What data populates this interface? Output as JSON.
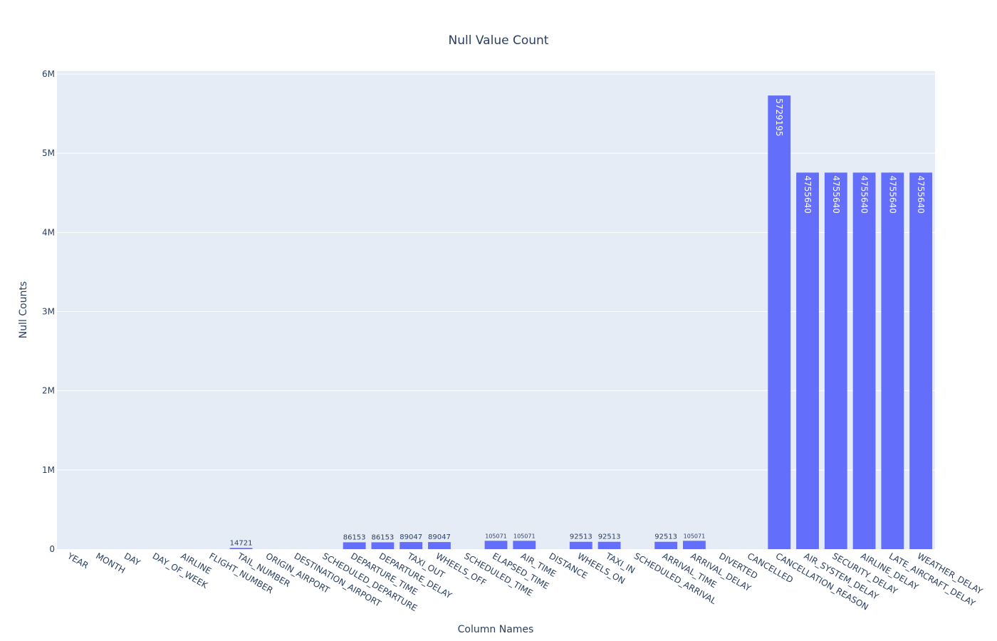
{
  "colors": {
    "bar": "#636efa",
    "plot_bg": "#e5ecf6",
    "grid": "#ffffff",
    "text": "#2a3f5f"
  },
  "chart_data": {
    "type": "bar",
    "title": "Null Value Count",
    "xlabel": "Column Names",
    "ylabel": "Null Counts",
    "ylim": [
      0,
      6000000
    ],
    "yticks": [
      {
        "value": 0,
        "label": "0"
      },
      {
        "value": 1000000,
        "label": "1M"
      },
      {
        "value": 2000000,
        "label": "2M"
      },
      {
        "value": 3000000,
        "label": "3M"
      },
      {
        "value": 4000000,
        "label": "4M"
      },
      {
        "value": 5000000,
        "label": "5M"
      },
      {
        "value": 6000000,
        "label": "6M"
      }
    ],
    "grid": true,
    "legend": "none",
    "categories": [
      "YEAR",
      "MONTH",
      "DAY",
      "DAY_OF_WEEK",
      "AIRLINE",
      "FLIGHT_NUMBER",
      "TAIL_NUMBER",
      "ORIGIN_AIRPORT",
      "DESTINATION_AIRPORT",
      "SCHEDULED_DEPARTURE",
      "DEPARTURE_TIME",
      "DEPARTURE_DELAY",
      "TAXI_OUT",
      "WHEELS_OFF",
      "SCHEDULED_TIME",
      "ELAPSED_TIME",
      "AIR_TIME",
      "DISTANCE",
      "WHEELS_ON",
      "TAXI_IN",
      "SCHEDULED_ARRIVAL",
      "ARRIVAL_TIME",
      "ARRIVAL_DELAY",
      "DIVERTED",
      "CANCELLED",
      "CANCELLATION_REASON",
      "AIR_SYSTEM_DELAY",
      "SECURITY_DELAY",
      "AIRLINE_DELAY",
      "LATE_AIRCRAFT_DELAY",
      "WEATHER_DELAY"
    ],
    "values": [
      0,
      0,
      0,
      0,
      0,
      0,
      14721,
      0,
      0,
      0,
      86153,
      86153,
      89047,
      89047,
      0,
      105071,
      105071,
      0,
      92513,
      92513,
      0,
      92513,
      105071,
      0,
      0,
      5729195,
      4755640,
      4755640,
      4755640,
      4755640,
      4755640
    ],
    "data_labels": [
      "",
      "",
      "",
      "",
      "",
      "",
      "14721",
      "",
      "",
      "",
      "86153",
      "86153",
      "89047",
      "89047",
      "",
      "105071",
      "105071",
      "",
      "92513",
      "92513",
      "",
      "92513",
      "105071",
      "",
      "",
      "5729195",
      "4755640",
      "4755640",
      "4755640",
      "4755640",
      "4755640"
    ]
  }
}
